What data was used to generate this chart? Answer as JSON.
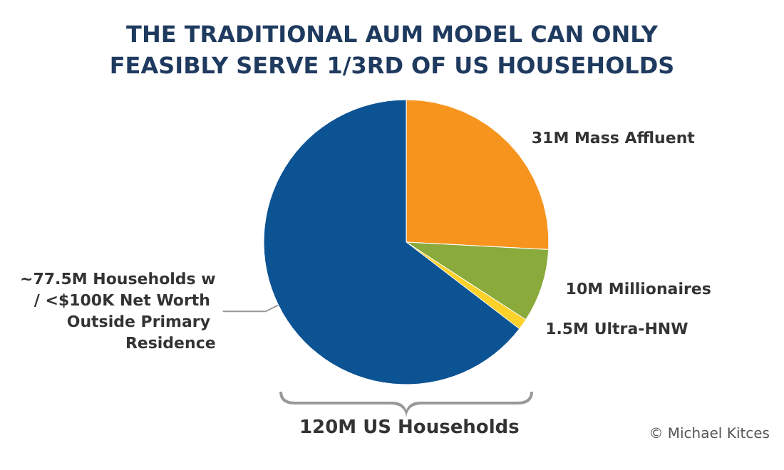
{
  "chart_data": {
    "type": "pie",
    "title": "THE TRADITIONAL AUM MODEL CAN ONLY\nFEASIBLY SERVE 1/3RD OF US HOUSEHOLDS",
    "categories": [
      "31M Mass Affluent",
      "10M Millionaires",
      "1.5M Ultra-HNW",
      "~77.5M Households w/ <$100K Net Worth Outside Primary Residence"
    ],
    "values": [
      31,
      10,
      1.5,
      77.5
    ],
    "colors": [
      "#f7941d",
      "#8aaa3c",
      "#fcd12a",
      "#0c5394"
    ],
    "annotations": [
      "120M US Households",
      "© Michael Kitces"
    ],
    "legend": false
  }
}
